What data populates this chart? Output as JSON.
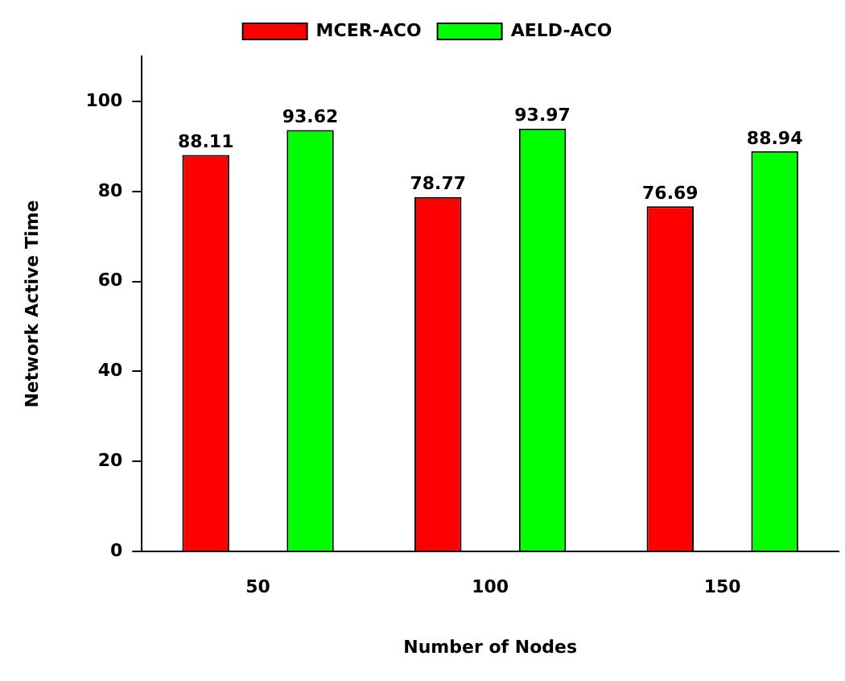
{
  "chart_data": {
    "type": "bar",
    "xlabel": "Number of Nodes",
    "ylabel": "Network Active Time",
    "categories": [
      "50",
      "100",
      "150"
    ],
    "series": [
      {
        "name": "MCER-ACO",
        "color": "#ff0000",
        "values": [
          88.11,
          78.77,
          76.69
        ]
      },
      {
        "name": "AELD-ACO",
        "color": "#00ff00",
        "values": [
          93.62,
          93.97,
          88.94
        ]
      }
    ],
    "ylim": [
      0,
      110
    ],
    "yticks": [
      0,
      20,
      40,
      60,
      80,
      100
    ],
    "grid": false,
    "legend": "top",
    "data_labels": true
  }
}
